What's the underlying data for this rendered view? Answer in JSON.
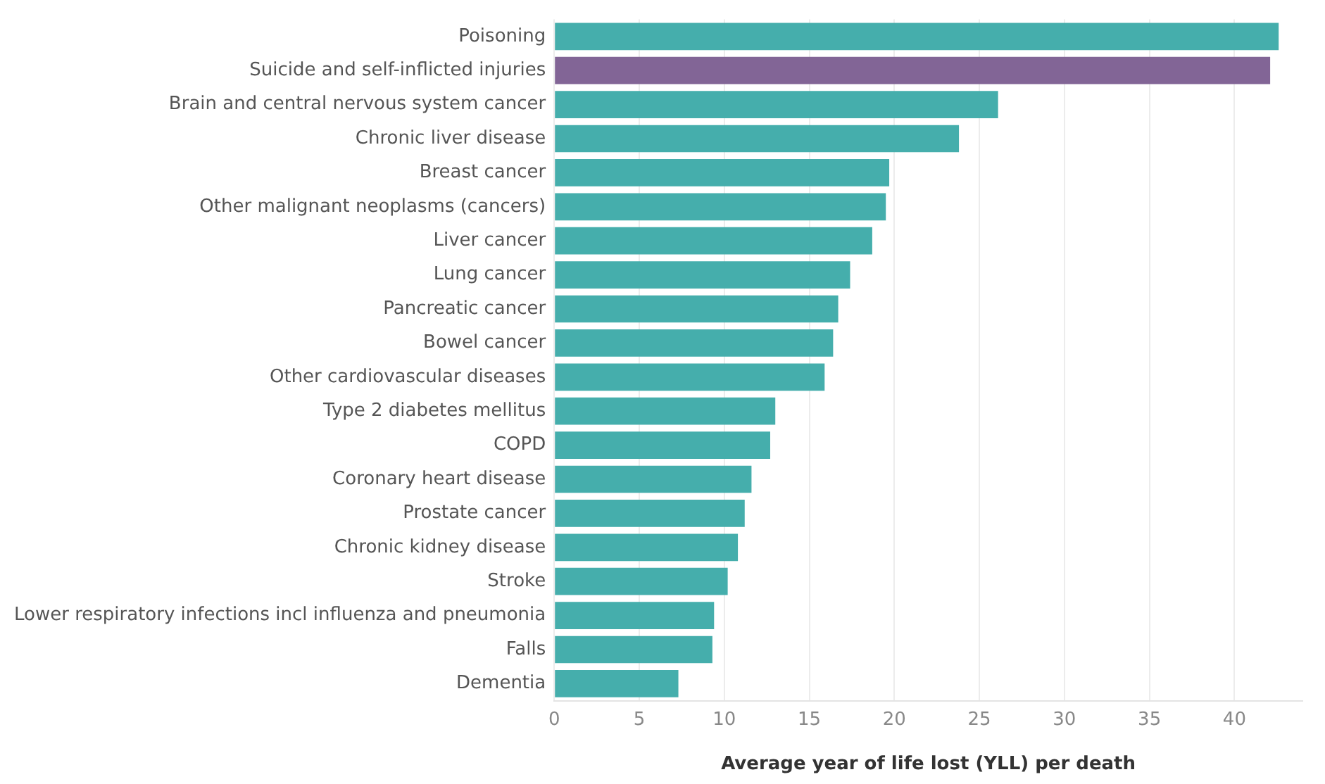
{
  "chart_data": {
    "type": "bar",
    "orientation": "horizontal",
    "xlabel": "Average year of life lost (YLL) per death",
    "categories": [
      "Poisoning",
      "Suicide and self-inflicted injuries",
      "Brain and central nervous system cancer",
      "Chronic liver disease",
      "Breast cancer",
      "Other malignant neoplasms (cancers)",
      "Liver cancer",
      "Lung cancer",
      "Pancreatic cancer",
      "Bowel cancer",
      "Other cardiovascular diseases",
      "Type 2 diabetes mellitus",
      "COPD",
      "Coronary heart disease",
      "Prostate cancer",
      "Chronic kidney disease",
      "Stroke",
      "Lower respiratory infections incl influenza and pneumonia",
      "Falls",
      "Dementia"
    ],
    "values": [
      42.6,
      42.1,
      26.1,
      23.8,
      19.7,
      19.5,
      18.7,
      17.4,
      16.7,
      16.4,
      15.9,
      13.0,
      12.7,
      11.6,
      11.2,
      10.8,
      10.2,
      9.4,
      9.3,
      7.3
    ],
    "colors": [
      "#45aeac",
      "#826596",
      "#45aeac",
      "#45aeac",
      "#45aeac",
      "#45aeac",
      "#45aeac",
      "#45aeac",
      "#45aeac",
      "#45aeac",
      "#45aeac",
      "#45aeac",
      "#45aeac",
      "#45aeac",
      "#45aeac",
      "#45aeac",
      "#45aeac",
      "#45aeac",
      "#45aeac",
      "#45aeac"
    ],
    "xlim": [
      0,
      44
    ],
    "xticks": [
      0,
      5,
      10,
      15,
      20,
      25,
      30,
      35,
      40
    ],
    "grid": "x",
    "legend": false
  }
}
